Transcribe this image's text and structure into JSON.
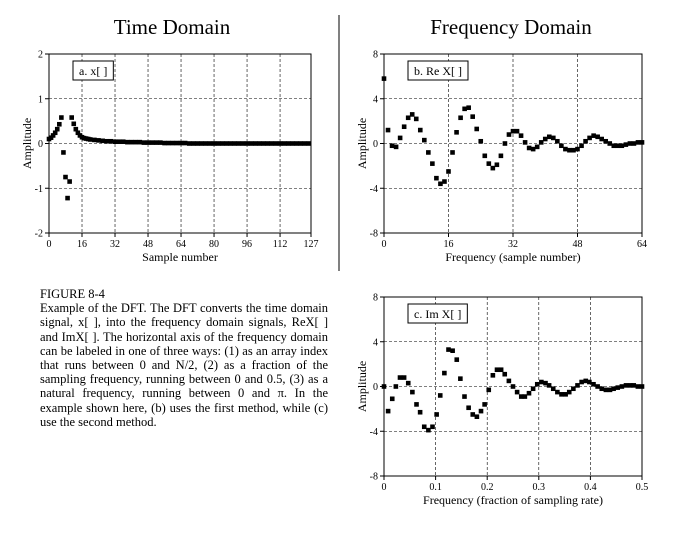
{
  "headings": {
    "time": "Time Domain",
    "frequency": "Frequency Domain"
  },
  "caption": {
    "title": "FIGURE 8-4",
    "body": "Example of the DFT. The DFT converts the time domain signal, x[ ], into the frequency domain signals, ReX[ ] and ImX[ ]. The horizontal axis of the frequency domain can be labeled in one of three ways: (1) as an array index that runs between 0 and N/2, (2) as a fraction of the sampling frequency, running between 0 and 0.5, (3) as a natural frequency, running between 0 and π. In the example shown here, (b) uses the first method, while (c) use the second method."
  },
  "colors": {
    "ink": "#000000",
    "paper": "#ffffff"
  },
  "chart_data": [
    {
      "id": "a",
      "type": "scatter",
      "inset_label": "a.  x[  ]",
      "xlabel": "Sample number",
      "ylabel": "Amplitude",
      "xlim": [
        0,
        127
      ],
      "ylim": [
        -2,
        2
      ],
      "xticks": [
        0,
        16,
        32,
        48,
        64,
        80,
        96,
        112,
        127
      ],
      "yticks": [
        -2,
        -1,
        0,
        1,
        2
      ],
      "grid": true,
      "points": [
        [
          0,
          0.1
        ],
        [
          1,
          0.13
        ],
        [
          2,
          0.18
        ],
        [
          3,
          0.24
        ],
        [
          4,
          0.32
        ],
        [
          5,
          0.43
        ],
        [
          6,
          0.58
        ],
        [
          7,
          -0.2
        ],
        [
          8,
          -0.75
        ],
        [
          9,
          -1.22
        ],
        [
          10,
          -0.85
        ],
        [
          11,
          0.58
        ],
        [
          12,
          0.44
        ],
        [
          13,
          0.32
        ],
        [
          14,
          0.24
        ],
        [
          15,
          0.18
        ],
        [
          16,
          0.14
        ],
        [
          17,
          0.12
        ],
        [
          18,
          0.11
        ],
        [
          19,
          0.1
        ],
        [
          20,
          0.09
        ],
        [
          22,
          0.08
        ],
        [
          24,
          0.07
        ],
        [
          26,
          0.06
        ],
        [
          28,
          0.05
        ],
        [
          30,
          0.05
        ],
        [
          32,
          0.04
        ],
        [
          34,
          0.04
        ],
        [
          36,
          0.04
        ],
        [
          38,
          0.03
        ],
        [
          40,
          0.03
        ],
        [
          42,
          0.03
        ],
        [
          44,
          0.03
        ],
        [
          46,
          0.02
        ],
        [
          48,
          0.02
        ],
        [
          50,
          0.02
        ],
        [
          52,
          0.02
        ],
        [
          54,
          0.02
        ],
        [
          56,
          0.01
        ],
        [
          58,
          0.01
        ],
        [
          60,
          0.01
        ],
        [
          62,
          0.01
        ],
        [
          64,
          0.01
        ],
        [
          66,
          0.01
        ],
        [
          68,
          0.0
        ],
        [
          70,
          0.0
        ],
        [
          72,
          0.0
        ],
        [
          74,
          0.0
        ],
        [
          76,
          0.0
        ],
        [
          78,
          0.0
        ],
        [
          80,
          0.0
        ],
        [
          82,
          0.0
        ],
        [
          84,
          0.0
        ],
        [
          86,
          0.0
        ],
        [
          88,
          0.0
        ],
        [
          90,
          0.0
        ],
        [
          92,
          0.0
        ],
        [
          94,
          0.0
        ],
        [
          96,
          0.0
        ],
        [
          98,
          0.0
        ],
        [
          100,
          0.0
        ],
        [
          102,
          0.0
        ],
        [
          104,
          0.0
        ],
        [
          106,
          0.0
        ],
        [
          108,
          0.0
        ],
        [
          110,
          0.0
        ],
        [
          112,
          0.0
        ],
        [
          114,
          0.0
        ],
        [
          116,
          0.0
        ],
        [
          118,
          0.0
        ],
        [
          120,
          0.0
        ],
        [
          122,
          0.0
        ],
        [
          124,
          0.0
        ],
        [
          126,
          0.0
        ]
      ]
    },
    {
      "id": "b",
      "type": "scatter",
      "inset_label": "b.  Re X[  ]",
      "xlabel": "Frequency (sample number)",
      "ylabel": "Amplitude",
      "xlim": [
        0,
        64
      ],
      "ylim": [
        -8,
        8
      ],
      "xticks": [
        0,
        16,
        32,
        48,
        64
      ],
      "yticks": [
        -8,
        -4,
        0,
        4,
        8
      ],
      "grid": true,
      "points": [
        [
          0,
          5.8
        ],
        [
          1,
          1.2
        ],
        [
          2,
          -0.2
        ],
        [
          3,
          -0.3
        ],
        [
          4,
          0.5
        ],
        [
          5,
          1.5
        ],
        [
          6,
          2.3
        ],
        [
          7,
          2.6
        ],
        [
          8,
          2.2
        ],
        [
          9,
          1.2
        ],
        [
          10,
          0.3
        ],
        [
          11,
          -0.8
        ],
        [
          12,
          -1.8
        ],
        [
          13,
          -3.1
        ],
        [
          14,
          -3.6
        ],
        [
          15,
          -3.4
        ],
        [
          16,
          -2.5
        ],
        [
          17,
          -0.8
        ],
        [
          18,
          1.0
        ],
        [
          19,
          2.3
        ],
        [
          20,
          3.1
        ],
        [
          21,
          3.2
        ],
        [
          22,
          2.4
        ],
        [
          23,
          1.3
        ],
        [
          24,
          0.2
        ],
        [
          25,
          -1.1
        ],
        [
          26,
          -1.8
        ],
        [
          27,
          -2.2
        ],
        [
          28,
          -1.9
        ],
        [
          29,
          -1.1
        ],
        [
          30,
          0.0
        ],
        [
          31,
          0.8
        ],
        [
          32,
          1.1
        ],
        [
          33,
          1.1
        ],
        [
          34,
          0.7
        ],
        [
          35,
          0.1
        ],
        [
          36,
          -0.4
        ],
        [
          37,
          -0.5
        ],
        [
          38,
          -0.3
        ],
        [
          39,
          0.1
        ],
        [
          40,
          0.4
        ],
        [
          41,
          0.6
        ],
        [
          42,
          0.5
        ],
        [
          43,
          0.2
        ],
        [
          44,
          -0.2
        ],
        [
          45,
          -0.5
        ],
        [
          46,
          -0.6
        ],
        [
          47,
          -0.6
        ],
        [
          48,
          -0.5
        ],
        [
          49,
          -0.2
        ],
        [
          50,
          0.2
        ],
        [
          51,
          0.5
        ],
        [
          52,
          0.7
        ],
        [
          53,
          0.6
        ],
        [
          54,
          0.4
        ],
        [
          55,
          0.2
        ],
        [
          56,
          0.0
        ],
        [
          57,
          -0.2
        ],
        [
          58,
          -0.2
        ],
        [
          59,
          -0.2
        ],
        [
          60,
          -0.1
        ],
        [
          61,
          0.0
        ],
        [
          62,
          0.0
        ],
        [
          63,
          0.1
        ],
        [
          64,
          0.1
        ]
      ]
    },
    {
      "id": "c",
      "type": "scatter",
      "inset_label": "c.  Im X[  ]",
      "xlabel": "Frequency (fraction of sampling rate)",
      "ylabel": "Amplitude",
      "xlim": [
        0,
        0.5
      ],
      "ylim": [
        -8,
        8
      ],
      "xticks": [
        0,
        0.1,
        0.2,
        0.3,
        0.4,
        0.5
      ],
      "yticks": [
        -8,
        -4,
        0,
        4,
        8
      ],
      "grid": true,
      "points": [
        [
          0.0,
          0.0
        ],
        [
          0.008,
          -2.2
        ],
        [
          0.016,
          -1.1
        ],
        [
          0.023,
          0.0
        ],
        [
          0.031,
          0.8
        ],
        [
          0.039,
          0.8
        ],
        [
          0.047,
          0.3
        ],
        [
          0.055,
          -0.5
        ],
        [
          0.063,
          -1.6
        ],
        [
          0.07,
          -2.3
        ],
        [
          0.078,
          -3.6
        ],
        [
          0.086,
          -3.9
        ],
        [
          0.094,
          -3.6
        ],
        [
          0.102,
          -2.5
        ],
        [
          0.109,
          -0.8
        ],
        [
          0.117,
          1.2
        ],
        [
          0.125,
          3.3
        ],
        [
          0.133,
          3.2
        ],
        [
          0.141,
          2.4
        ],
        [
          0.148,
          0.7
        ],
        [
          0.156,
          -0.9
        ],
        [
          0.164,
          -1.9
        ],
        [
          0.172,
          -2.5
        ],
        [
          0.18,
          -2.7
        ],
        [
          0.188,
          -2.2
        ],
        [
          0.195,
          -1.6
        ],
        [
          0.203,
          -0.3
        ],
        [
          0.211,
          1.0
        ],
        [
          0.219,
          1.5
        ],
        [
          0.227,
          1.5
        ],
        [
          0.234,
          1.1
        ],
        [
          0.242,
          0.5
        ],
        [
          0.25,
          0.0
        ],
        [
          0.258,
          -0.5
        ],
        [
          0.266,
          -0.9
        ],
        [
          0.273,
          -0.9
        ],
        [
          0.281,
          -0.6
        ],
        [
          0.289,
          -0.2
        ],
        [
          0.297,
          0.2
        ],
        [
          0.305,
          0.4
        ],
        [
          0.313,
          0.3
        ],
        [
          0.32,
          0.1
        ],
        [
          0.328,
          -0.2
        ],
        [
          0.336,
          -0.5
        ],
        [
          0.344,
          -0.7
        ],
        [
          0.352,
          -0.7
        ],
        [
          0.359,
          -0.5
        ],
        [
          0.367,
          -0.2
        ],
        [
          0.375,
          0.1
        ],
        [
          0.383,
          0.4
        ],
        [
          0.391,
          0.5
        ],
        [
          0.398,
          0.4
        ],
        [
          0.406,
          0.2
        ],
        [
          0.414,
          0.0
        ],
        [
          0.422,
          -0.2
        ],
        [
          0.43,
          -0.3
        ],
        [
          0.438,
          -0.3
        ],
        [
          0.445,
          -0.2
        ],
        [
          0.453,
          -0.1
        ],
        [
          0.461,
          0.0
        ],
        [
          0.469,
          0.1
        ],
        [
          0.477,
          0.1
        ],
        [
          0.484,
          0.1
        ],
        [
          0.492,
          0.0
        ],
        [
          0.5,
          0.0
        ]
      ]
    }
  ]
}
